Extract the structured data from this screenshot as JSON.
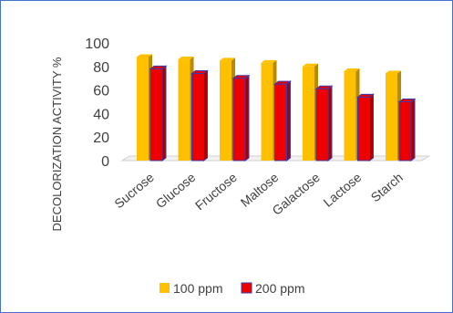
{
  "chart_data": {
    "type": "bar",
    "style": "3d-clustered-column",
    "categories": [
      "Sucrose",
      "Glucose",
      "Fructose",
      "Maltose",
      "Galactose",
      "Lactose",
      "Starch"
    ],
    "series": [
      {
        "name": "100 ppm",
        "color": "#ffc000",
        "values": [
          88,
          86,
          85,
          83,
          80,
          76,
          74
        ]
      },
      {
        "name": "200 ppm",
        "color": "#ee0000",
        "edge_color": "#3b3bb0",
        "values": [
          78,
          74,
          70,
          65,
          61,
          54,
          50
        ]
      }
    ],
    "yticks": [
      0,
      20,
      40,
      60,
      80,
      100
    ],
    "ylim": [
      0,
      100
    ],
    "xlabel": "",
    "ylabel": "DECOLORIZATION ACTIVITY %",
    "title": "",
    "grid": false,
    "legend": "bottom"
  }
}
